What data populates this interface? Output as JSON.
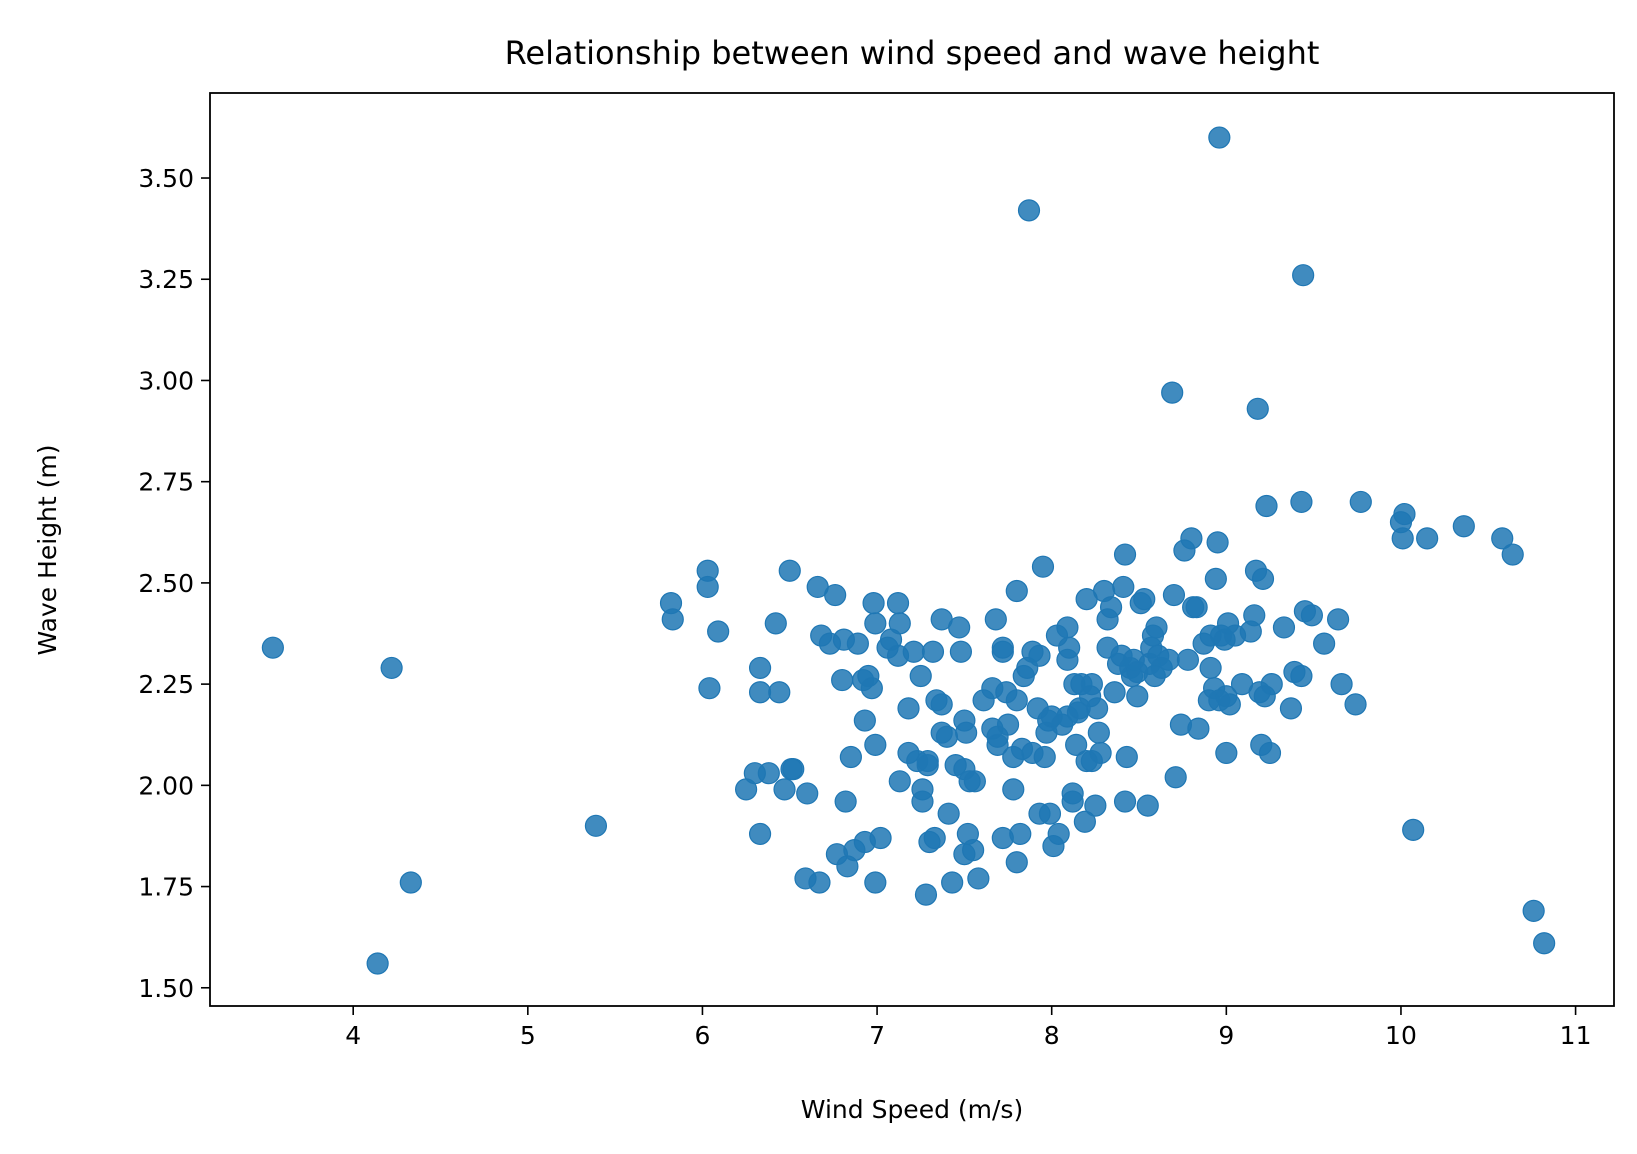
{
  "chart_data": {
    "type": "scatter",
    "title": "Relationship between wind speed and wave height",
    "xlabel": "Wind Speed (m/s)",
    "ylabel": "Wave Height (m)",
    "xlim": [
      3.18,
      11.22
    ],
    "ylim": [
      1.455,
      3.71
    ],
    "xticks": [
      4,
      5,
      6,
      7,
      8,
      9,
      10,
      11
    ],
    "xtick_labels": [
      "4",
      "5",
      "6",
      "7",
      "8",
      "9",
      "10",
      "11"
    ],
    "yticks": [
      1.5,
      1.75,
      2.0,
      2.25,
      2.5,
      2.75,
      3.0,
      3.25,
      3.5
    ],
    "ytick_labels": [
      "1.50",
      "1.75",
      "2.00",
      "2.25",
      "2.50",
      "2.75",
      "3.00",
      "3.25",
      "3.50"
    ],
    "grid": false,
    "marker_color": "#1f77b4",
    "marker_alpha": 0.85,
    "series": [
      {
        "points": [
          [
            3.54,
            2.34
          ],
          [
            4.22,
            2.29
          ],
          [
            4.14,
            1.56
          ],
          [
            4.33,
            1.76
          ],
          [
            5.39,
            1.9
          ],
          [
            5.82,
            2.45
          ],
          [
            5.83,
            2.41
          ],
          [
            6.03,
            2.53
          ],
          [
            6.03,
            2.49
          ],
          [
            6.09,
            2.38
          ],
          [
            6.04,
            2.24
          ],
          [
            6.25,
            1.99
          ],
          [
            6.3,
            2.03
          ],
          [
            6.33,
            2.29
          ],
          [
            6.33,
            2.23
          ],
          [
            6.38,
            2.03
          ],
          [
            6.33,
            1.88
          ],
          [
            6.42,
            2.4
          ],
          [
            6.44,
            2.23
          ],
          [
            6.47,
            1.99
          ],
          [
            6.5,
            2.53
          ],
          [
            6.51,
            2.04
          ],
          [
            6.52,
            2.04
          ],
          [
            6.59,
            1.77
          ],
          [
            6.6,
            1.98
          ],
          [
            6.66,
            2.49
          ],
          [
            6.67,
            1.76
          ],
          [
            6.68,
            2.37
          ],
          [
            6.73,
            2.35
          ],
          [
            6.76,
            2.47
          ],
          [
            6.77,
            1.83
          ],
          [
            6.8,
            2.26
          ],
          [
            6.81,
            2.36
          ],
          [
            6.82,
            1.96
          ],
          [
            6.83,
            1.8
          ],
          [
            6.85,
            2.07
          ],
          [
            6.87,
            1.84
          ],
          [
            6.89,
            2.35
          ],
          [
            6.92,
            2.26
          ],
          [
            6.93,
            1.86
          ],
          [
            6.93,
            2.16
          ],
          [
            6.95,
            2.27
          ],
          [
            6.97,
            2.24
          ],
          [
            6.98,
            2.45
          ],
          [
            6.99,
            2.1
          ],
          [
            6.99,
            1.76
          ],
          [
            7.02,
            1.87
          ],
          [
            6.99,
            2.4
          ],
          [
            7.06,
            2.34
          ],
          [
            7.08,
            2.36
          ],
          [
            7.12,
            2.45
          ],
          [
            7.13,
            2.4
          ],
          [
            7.12,
            2.32
          ],
          [
            7.13,
            2.01
          ],
          [
            7.18,
            2.19
          ],
          [
            7.18,
            2.08
          ],
          [
            7.21,
            2.33
          ],
          [
            7.23,
            2.06
          ],
          [
            7.25,
            2.27
          ],
          [
            7.26,
            1.99
          ],
          [
            7.26,
            1.96
          ],
          [
            7.28,
            1.73
          ],
          [
            7.29,
            2.06
          ],
          [
            7.29,
            2.05
          ],
          [
            7.3,
            1.86
          ],
          [
            7.33,
            1.87
          ],
          [
            7.32,
            2.33
          ],
          [
            7.34,
            2.21
          ],
          [
            7.37,
            2.41
          ],
          [
            7.37,
            2.2
          ],
          [
            7.37,
            2.13
          ],
          [
            7.4,
            2.12
          ],
          [
            7.41,
            1.93
          ],
          [
            7.43,
            1.76
          ],
          [
            7.45,
            2.05
          ],
          [
            7.47,
            2.39
          ],
          [
            7.48,
            2.33
          ],
          [
            7.5,
            2.16
          ],
          [
            7.5,
            2.04
          ],
          [
            7.5,
            1.83
          ],
          [
            7.51,
            2.13
          ],
          [
            7.52,
            1.88
          ],
          [
            7.53,
            2.01
          ],
          [
            7.55,
            1.84
          ],
          [
            7.56,
            2.01
          ],
          [
            7.58,
            1.77
          ],
          [
            7.61,
            2.21
          ],
          [
            7.66,
            2.24
          ],
          [
            7.66,
            2.14
          ],
          [
            7.68,
            2.41
          ],
          [
            7.69,
            2.12
          ],
          [
            7.69,
            2.1
          ],
          [
            7.72,
            2.33
          ],
          [
            7.72,
            2.34
          ],
          [
            7.72,
            1.87
          ],
          [
            7.74,
            2.23
          ],
          [
            7.75,
            2.15
          ],
          [
            7.78,
            2.07
          ],
          [
            7.78,
            1.99
          ],
          [
            7.8,
            2.21
          ],
          [
            7.8,
            2.48
          ],
          [
            7.8,
            1.81
          ],
          [
            7.82,
            1.88
          ],
          [
            7.83,
            2.09
          ],
          [
            7.84,
            2.27
          ],
          [
            7.86,
            2.29
          ],
          [
            7.87,
            3.42
          ],
          [
            7.89,
            2.33
          ],
          [
            7.89,
            2.08
          ],
          [
            7.92,
            2.19
          ],
          [
            7.93,
            2.32
          ],
          [
            7.93,
            1.93
          ],
          [
            7.95,
            2.54
          ],
          [
            7.96,
            2.07
          ],
          [
            7.97,
            2.13
          ],
          [
            7.98,
            2.16
          ],
          [
            7.99,
            1.93
          ],
          [
            8.0,
            2.17
          ],
          [
            8.01,
            1.85
          ],
          [
            8.03,
            2.37
          ],
          [
            8.04,
            1.88
          ],
          [
            8.06,
            2.15
          ],
          [
            8.09,
            2.39
          ],
          [
            8.09,
            2.31
          ],
          [
            8.09,
            2.17
          ],
          [
            8.1,
            2.34
          ],
          [
            8.12,
            1.98
          ],
          [
            8.12,
            1.96
          ],
          [
            8.13,
            2.25
          ],
          [
            8.14,
            2.1
          ],
          [
            8.15,
            2.18
          ],
          [
            8.16,
            2.19
          ],
          [
            8.17,
            2.25
          ],
          [
            8.19,
            1.91
          ],
          [
            8.2,
            2.06
          ],
          [
            8.2,
            2.46
          ],
          [
            8.22,
            2.22
          ],
          [
            8.23,
            2.06
          ],
          [
            8.23,
            2.25
          ],
          [
            8.25,
            1.95
          ],
          [
            8.26,
            2.19
          ],
          [
            8.27,
            2.13
          ],
          [
            8.28,
            2.08
          ],
          [
            8.3,
            2.48
          ],
          [
            8.32,
            2.34
          ],
          [
            8.32,
            2.41
          ],
          [
            8.34,
            2.44
          ],
          [
            8.36,
            2.23
          ],
          [
            8.38,
            2.3
          ],
          [
            8.4,
            2.32
          ],
          [
            8.41,
            2.49
          ],
          [
            8.42,
            2.57
          ],
          [
            8.42,
            1.96
          ],
          [
            8.43,
            2.07
          ],
          [
            8.45,
            2.29
          ],
          [
            8.46,
            2.27
          ],
          [
            8.47,
            2.31
          ],
          [
            8.49,
            2.28
          ],
          [
            8.49,
            2.22
          ],
          [
            8.51,
            2.45
          ],
          [
            8.53,
            2.46
          ],
          [
            8.55,
            1.95
          ],
          [
            8.56,
            2.3
          ],
          [
            8.57,
            2.34
          ],
          [
            8.58,
            2.37
          ],
          [
            8.59,
            2.27
          ],
          [
            8.6,
            2.39
          ],
          [
            8.61,
            2.32
          ],
          [
            8.63,
            2.29
          ],
          [
            8.67,
            2.31
          ],
          [
            8.69,
            2.97
          ],
          [
            8.7,
            2.47
          ],
          [
            8.71,
            2.02
          ],
          [
            8.74,
            2.15
          ],
          [
            8.76,
            2.58
          ],
          [
            8.78,
            2.31
          ],
          [
            8.8,
            2.61
          ],
          [
            8.81,
            2.44
          ],
          [
            8.83,
            2.44
          ],
          [
            8.84,
            2.14
          ],
          [
            8.87,
            2.35
          ],
          [
            8.9,
            2.21
          ],
          [
            8.91,
            2.37
          ],
          [
            8.91,
            2.29
          ],
          [
            8.93,
            2.24
          ],
          [
            8.94,
            2.51
          ],
          [
            8.95,
            2.6
          ],
          [
            8.96,
            3.6
          ],
          [
            8.96,
            2.21
          ],
          [
            8.97,
            2.37
          ],
          [
            8.99,
            2.36
          ],
          [
            9.0,
            2.22
          ],
          [
            9.0,
            2.08
          ],
          [
            9.01,
            2.4
          ],
          [
            9.02,
            2.2
          ],
          [
            9.05,
            2.37
          ],
          [
            9.09,
            2.25
          ],
          [
            9.14,
            2.38
          ],
          [
            9.16,
            2.42
          ],
          [
            9.17,
            2.53
          ],
          [
            9.18,
            2.93
          ],
          [
            9.19,
            2.23
          ],
          [
            9.2,
            2.1
          ],
          [
            9.21,
            2.51
          ],
          [
            9.22,
            2.22
          ],
          [
            9.23,
            2.69
          ],
          [
            9.25,
            2.08
          ],
          [
            9.26,
            2.25
          ],
          [
            9.33,
            2.39
          ],
          [
            9.37,
            2.19
          ],
          [
            9.39,
            2.28
          ],
          [
            9.43,
            2.7
          ],
          [
            9.43,
            2.27
          ],
          [
            9.44,
            3.26
          ],
          [
            9.45,
            2.43
          ],
          [
            9.49,
            2.42
          ],
          [
            9.56,
            2.35
          ],
          [
            9.64,
            2.41
          ],
          [
            9.66,
            2.25
          ],
          [
            9.74,
            2.2
          ],
          [
            9.77,
            2.7
          ],
          [
            10.0,
            2.65
          ],
          [
            10.01,
            2.61
          ],
          [
            10.02,
            2.67
          ],
          [
            10.07,
            1.89
          ],
          [
            10.15,
            2.61
          ],
          [
            10.36,
            2.64
          ],
          [
            10.58,
            2.61
          ],
          [
            10.64,
            2.57
          ],
          [
            10.76,
            1.69
          ],
          [
            10.82,
            1.61
          ]
        ]
      }
    ]
  }
}
